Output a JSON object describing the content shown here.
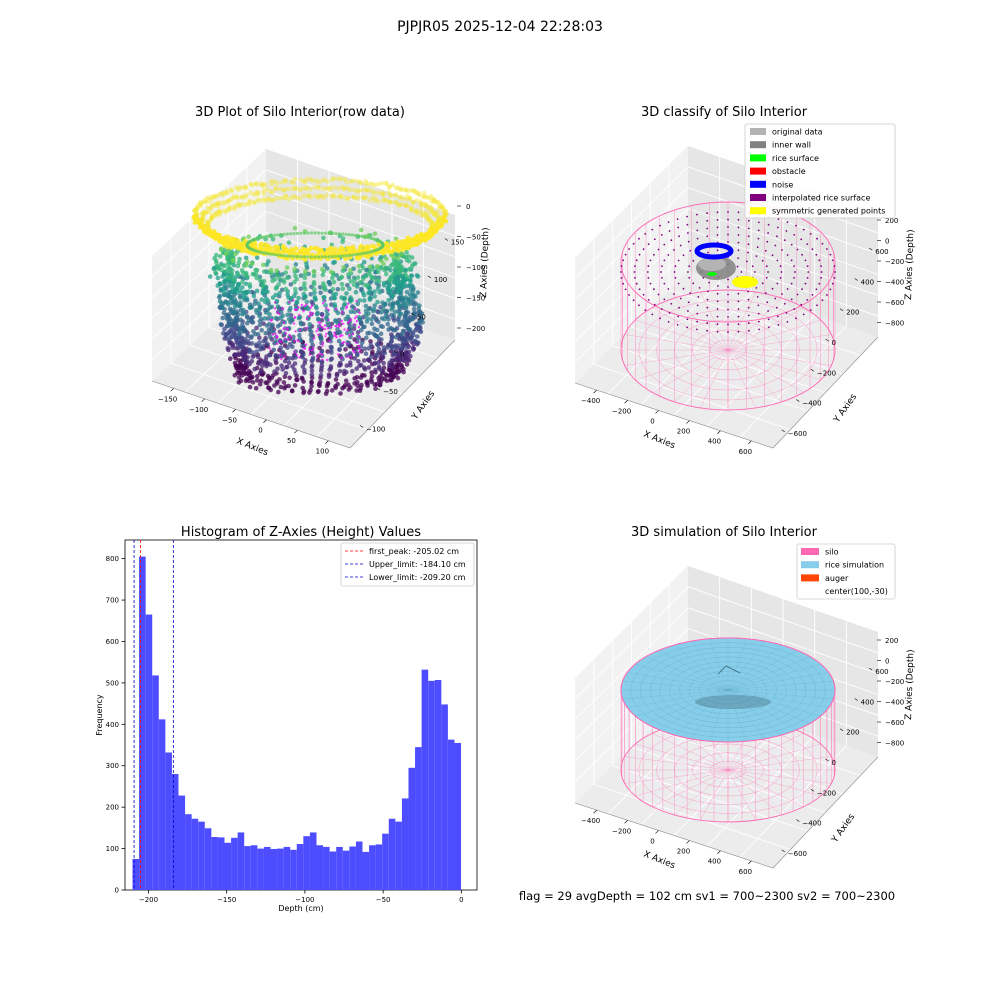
{
  "suptitle": "PJPJR05 2025-12-04 22:28:03",
  "footer": "flag = 29  avgDepth = 102 cm  sv1 = 700~2300  sv2 = 700~2300",
  "colors": {
    "bar": "#4d4dff",
    "red_line": "#ff0000",
    "blue_line": "#0000cc",
    "pane": "#f2f2f2",
    "grid": "#ffffff",
    "axis": "#000000",
    "silo": "#ff69b4",
    "rice": "#87ceeb",
    "auger": "#ff4500",
    "gray": "#b3b3b3",
    "dark_gray": "#808080",
    "green": "#00ff00",
    "obstacle": "#ff0000",
    "noise": "#0000ff",
    "purple": "#800080",
    "yellow": "#ffff00"
  },
  "chart_data": [
    {
      "id": "raw",
      "type": "scatter",
      "title": "3D Plot of Silo Interior(row data)",
      "xlabel": "X Axies",
      "ylabel": "Y Axies",
      "zlabel": "Z Axies (Depth)",
      "x_ticks": [
        "−150",
        "−100",
        "−50",
        "0",
        "50",
        "100"
      ],
      "y_ticks": [
        "−100",
        "−50",
        "0",
        "50",
        "100",
        "150"
      ],
      "z_ticks": [
        "0",
        "−50",
        "−100",
        "−150",
        "−200"
      ],
      "xlim": [
        -180,
        120
      ],
      "ylim": [
        -120,
        160
      ],
      "zlim": [
        -220,
        10
      ],
      "colormap": "viridis"
    },
    {
      "id": "classify",
      "type": "scatter",
      "title": "3D classify of Silo Interior",
      "xlabel": "X Axies",
      "ylabel": "Y Axies",
      "zlabel": "Z Axies (Depth)",
      "x_ticks": [
        "−400",
        "−200",
        "0",
        "200",
        "400",
        "600"
      ],
      "y_ticks": [
        "−600",
        "−400",
        "−200",
        "0",
        "200",
        "400",
        "600"
      ],
      "z_ticks": [
        "200",
        "0",
        "−200",
        "−400",
        "−600",
        "−800"
      ],
      "legend": [
        {
          "label": "original data",
          "color": "#b3b3b3"
        },
        {
          "label": "inner wall",
          "color": "#808080"
        },
        {
          "label": "rice surface",
          "color": "#00ff00"
        },
        {
          "label": "obstacle",
          "color": "#ff0000"
        },
        {
          "label": "noise",
          "color": "#0000ff"
        },
        {
          "label": "interpolated rice surface",
          "color": "#800080"
        },
        {
          "label": "symmetric generated points",
          "color": "#ffff00"
        }
      ],
      "legend_loc": "upper right"
    },
    {
      "id": "hist",
      "type": "bar",
      "title": "Histogram of Z-Axies (Height) Values",
      "xlabel": "Depth (cm)",
      "ylabel": "Frequency",
      "xlim": [
        -215,
        10
      ],
      "ylim": [
        0,
        845
      ],
      "x_ticks": [
        -200,
        -150,
        -100,
        -50,
        0
      ],
      "x_tick_labels": [
        "−200",
        "−150",
        "−100",
        "−50",
        "0"
      ],
      "y_ticks": [
        0,
        100,
        200,
        300,
        400,
        500,
        600,
        700,
        800
      ],
      "bin_start": -210.2,
      "bin_width": 4.2,
      "values": [
        75,
        805,
        665,
        518,
        412,
        332,
        280,
        228,
        183,
        172,
        165,
        149,
        128,
        127,
        114,
        126,
        139,
        106,
        108,
        100,
        104,
        99,
        100,
        104,
        97,
        111,
        130,
        139,
        108,
        104,
        93,
        104,
        95,
        105,
        117,
        92,
        108,
        110,
        136,
        172,
        165,
        221,
        295,
        345,
        532,
        505,
        507,
        448,
        363,
        355
      ],
      "vlines": [
        {
          "label": "first_peak: -205.02 cm",
          "x": -205.02,
          "color": "#ff0000"
        },
        {
          "label": "Upper_limit: -184.10 cm",
          "x": -184.1,
          "color": "#0000cc"
        },
        {
          "label": "Lower_limit: -209.20 cm",
          "x": -209.2,
          "color": "#0000cc"
        }
      ],
      "legend_loc": "upper right"
    },
    {
      "id": "sim",
      "type": "scatter",
      "title": "3D simulation of Silo Interior",
      "xlabel": "X Axies",
      "ylabel": "Y Axies",
      "zlabel": "Z Axies (Depth)",
      "x_ticks": [
        "−400",
        "−200",
        "0",
        "200",
        "400",
        "600"
      ],
      "y_ticks": [
        "−600",
        "−400",
        "−200",
        "0",
        "200",
        "400",
        "600"
      ],
      "z_ticks": [
        "200",
        "0",
        "−200",
        "−400",
        "−600",
        "−800"
      ],
      "legend": [
        {
          "label": "silo",
          "color": "#ff69b4"
        },
        {
          "label": "rice simulation",
          "color": "#87ceeb"
        },
        {
          "label": "auger",
          "color": "#ff4500"
        },
        {
          "label": "center(100,-30)",
          "color": ""
        }
      ],
      "legend_loc": "upper right"
    }
  ]
}
